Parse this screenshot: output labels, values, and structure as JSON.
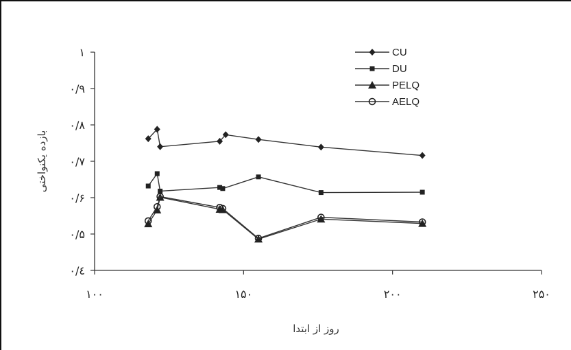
{
  "chart_data": {
    "type": "line",
    "xlabel": "روز از ابتدا",
    "ylabel": "بازده یکنواختی",
    "xlim": [
      100,
      250
    ],
    "ylim": [
      0.4,
      1.0
    ],
    "x_ticks": [
      100,
      150,
      200,
      250
    ],
    "x_tick_labels": [
      "۱۰۰",
      "۱۵۰",
      "۲۰۰",
      "۲۵۰"
    ],
    "y_ticks": [
      0.4,
      0.5,
      0.6,
      0.7,
      0.8,
      0.9,
      1.0
    ],
    "y_tick_labels": [
      "۰/٤",
      "۰/۵",
      "۰/۶",
      "۰/۷",
      "۰/۸",
      "۰/۹",
      "۱"
    ],
    "grid": false,
    "legend_position": "top-right",
    "series": [
      {
        "name": "CU",
        "marker": "diamond",
        "x": [
          118,
          121,
          122,
          142,
          144,
          155,
          176,
          210
        ],
        "y": [
          0.762,
          0.788,
          0.74,
          0.755,
          0.773,
          0.76,
          0.739,
          0.716
        ]
      },
      {
        "name": "DU",
        "marker": "square",
        "x": [
          118,
          121,
          122,
          142,
          143,
          155,
          176,
          210
        ],
        "y": [
          0.632,
          0.666,
          0.618,
          0.628,
          0.625,
          0.657,
          0.614,
          0.615
        ]
      },
      {
        "name": "PELQ",
        "marker": "triangle",
        "x": [
          118,
          121,
          122,
          142,
          143,
          155,
          176,
          210
        ],
        "y": [
          0.528,
          0.566,
          0.601,
          0.568,
          0.567,
          0.486,
          0.541,
          0.529
        ]
      },
      {
        "name": "AELQ",
        "marker": "circle",
        "x": [
          118,
          121,
          122,
          142,
          143,
          155,
          176,
          210
        ],
        "y": [
          0.536,
          0.575,
          0.603,
          0.573,
          0.57,
          0.488,
          0.546,
          0.533
        ]
      }
    ]
  }
}
